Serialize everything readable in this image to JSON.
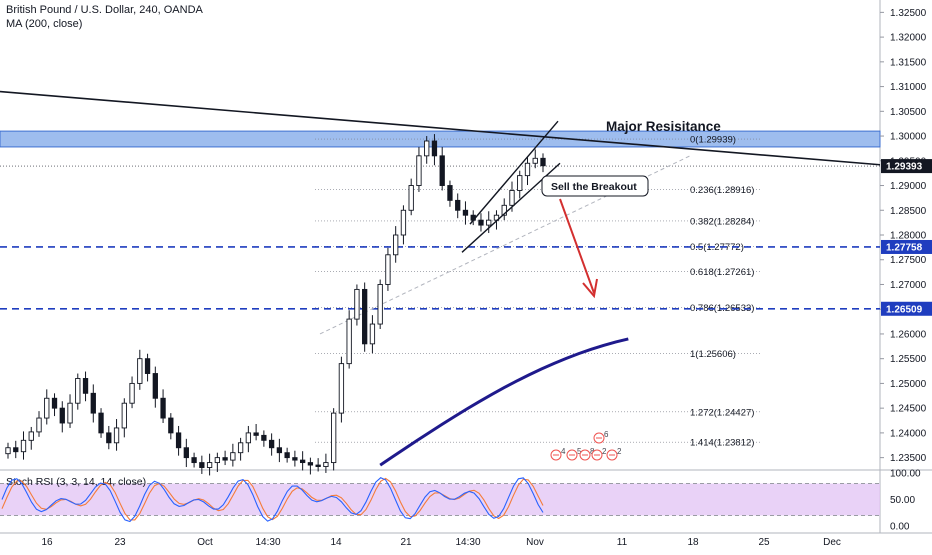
{
  "header": {
    "title": "British Pound / U.S. Dollar, 240, OANDA",
    "ma_label": "MA (200, close)"
  },
  "price_axis": {
    "ticks": [
      "1.32500",
      "1.32000",
      "1.31500",
      "1.31000",
      "1.30500",
      "1.30000",
      "1.29500",
      "1.29000",
      "1.28500",
      "1.28000",
      "1.27500",
      "1.27000",
      "1.26500",
      "1.26000",
      "1.25500",
      "1.25000",
      "1.24500",
      "1.24000",
      "1.23500"
    ],
    "tags": [
      {
        "value": 1.29393,
        "label": "1.29393",
        "color": "#131722"
      },
      {
        "value": 1.27758,
        "label": "1.27758",
        "color": "#1f3dbf"
      },
      {
        "value": 1.26509,
        "label": "1.26509",
        "color": "#1f3dbf"
      }
    ]
  },
  "time_axis": {
    "labels": [
      "16",
      "23",
      "Oct",
      "14:30",
      "14",
      "21",
      "14:30",
      "Nov",
      "11",
      "18",
      "25",
      "Dec"
    ]
  },
  "annotations": {
    "major_resistance": "Major Resisitance",
    "sell_breakout": "Sell the Breakout"
  },
  "fibonacci": [
    {
      "ratio": "0",
      "price": 1.29939,
      "label": "0(1.29939)"
    },
    {
      "ratio": "0.236",
      "price": 1.28916,
      "label": "0.236(1.28916)"
    },
    {
      "ratio": "0.382",
      "price": 1.28284,
      "label": "0.382(1.28284)"
    },
    {
      "ratio": "0.5",
      "price": 1.27772,
      "label": "0.5(1.27772)"
    },
    {
      "ratio": "0.618",
      "price": 1.27261,
      "label": "0.618(1.27261)"
    },
    {
      "ratio": "0.786",
      "price": 1.26533,
      "label": "0.786(1.26533)"
    },
    {
      "ratio": "1",
      "price": 1.25606,
      "label": "1(1.25606)"
    },
    {
      "ratio": "1.272",
      "price": 1.24427,
      "label": "1.272(1.24427)"
    },
    {
      "ratio": "1.414",
      "price": 1.23812,
      "label": "1.414(1.23812)"
    }
  ],
  "events": [
    "6",
    "4",
    "5",
    "8",
    "2",
    "2"
  ],
  "stoch": {
    "label": "Stoch RSI (3, 3, 14, 14, close)",
    "ticks": [
      "100.00",
      "50.00",
      "0.00"
    ]
  },
  "colors": {
    "candle": "#131722",
    "resistance_zone": "#7da7e8",
    "support_line": "#1f3dbf",
    "ma200": "#1f1a8c",
    "arrow": "#d32f2f",
    "stoch_k": "#2962ff",
    "stoch_d": "#f57c3a",
    "stoch_band": "#e4c7f5"
  },
  "chart_data": {
    "type": "candlestick",
    "title": "British Pound / U.S. Dollar, 240, OANDA",
    "ylim": [
      1.2325,
      1.3275
    ],
    "close_values": [
      1.237,
      1.2362,
      1.2385,
      1.2402,
      1.243,
      1.247,
      1.245,
      1.242,
      1.246,
      1.251,
      1.248,
      1.244,
      1.24,
      1.238,
      1.241,
      1.246,
      1.25,
      1.255,
      1.252,
      1.247,
      1.243,
      1.24,
      1.237,
      1.235,
      1.234,
      1.233,
      1.234,
      1.235,
      1.2345,
      1.236,
      1.238,
      1.24,
      1.2395,
      1.2385,
      1.237,
      1.236,
      1.235,
      1.2345,
      1.234,
      1.2335,
      1.2332,
      1.234,
      1.244,
      1.254,
      1.263,
      1.269,
      1.258,
      1.262,
      1.27,
      1.276,
      1.28,
      1.285,
      1.29,
      1.296,
      1.299,
      1.296,
      1.29,
      1.287,
      1.285,
      1.284,
      1.283,
      1.282,
      1.283,
      1.284,
      1.286,
      1.289,
      1.292,
      1.2945,
      1.2955,
      1.294
    ],
    "ma200_x_index": [
      48,
      80
    ],
    "ma200_values": [
      1.2335,
      1.259
    ]
  }
}
